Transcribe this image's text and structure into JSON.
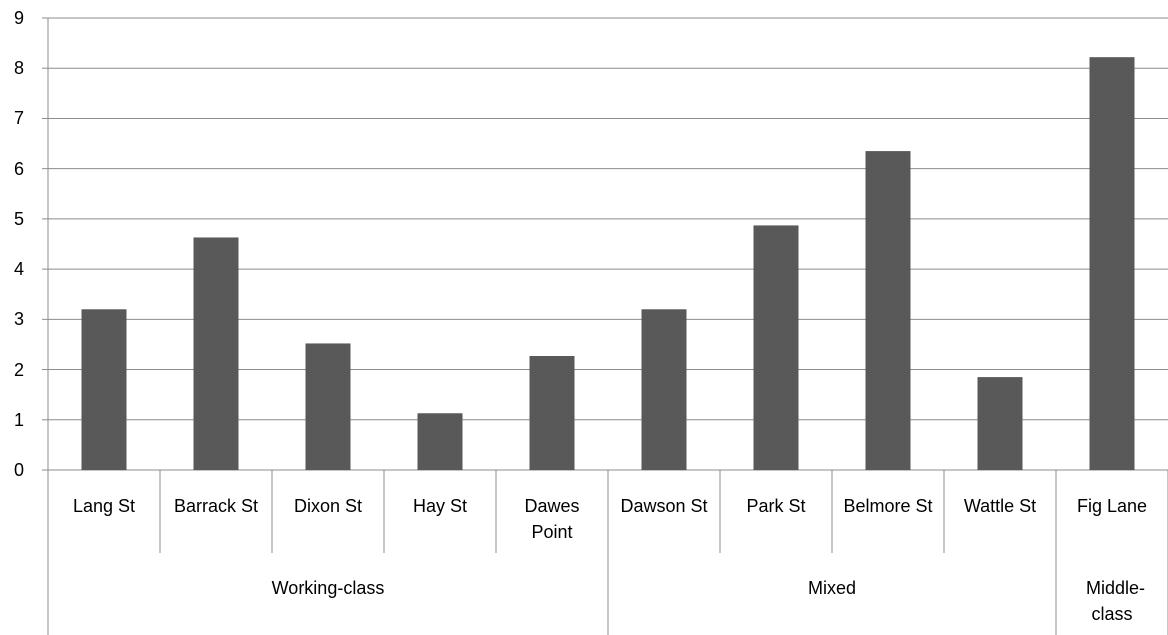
{
  "chart_data": {
    "type": "bar",
    "color": "#595959",
    "groups": [
      {
        "name": "Working-class",
        "categories": [
          "Lang St",
          "Barrack St",
          "Dixon St",
          "Hay St",
          "Dawes Point"
        ],
        "values": [
          3.2,
          4.63,
          2.52,
          1.13,
          2.27
        ]
      },
      {
        "name": "Mixed",
        "categories": [
          "Dawson St",
          "Park St",
          "Belmore St",
          "Wattle St"
        ],
        "values": [
          3.2,
          4.87,
          6.35,
          1.85
        ]
      },
      {
        "name": "Middle-class",
        "categories": [
          "Fig Lane"
        ],
        "values": [
          8.22
        ]
      }
    ],
    "ylim": [
      0,
      9
    ],
    "yticks": [
      0,
      1,
      2,
      3,
      4,
      5,
      6,
      7,
      8,
      9
    ],
    "grid": true
  }
}
